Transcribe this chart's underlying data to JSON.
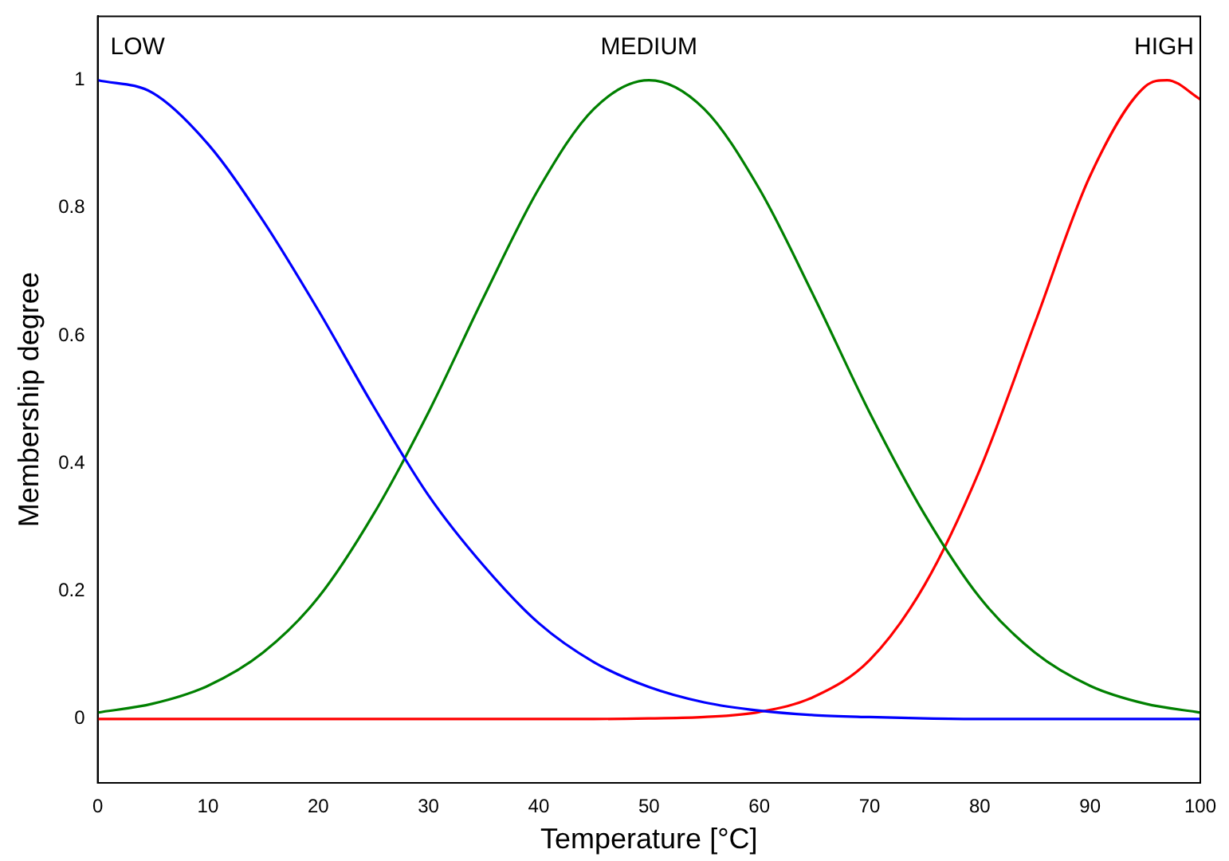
{
  "chart_data": {
    "type": "line",
    "xlabel": "Temperature [°C]",
    "ylabel": "Membership degree",
    "x": [
      0,
      5,
      10,
      15,
      20,
      25,
      30,
      35,
      40,
      45,
      50,
      55,
      60,
      65,
      70,
      75,
      80,
      85,
      90,
      95,
      100
    ],
    "xlim": [
      0,
      100
    ],
    "xticks": [
      0,
      10,
      20,
      30,
      40,
      50,
      60,
      70,
      80,
      90,
      100
    ],
    "ylim": [
      -0.1,
      1.1
    ],
    "yticks": [
      0,
      0.2,
      0.4,
      0.6,
      0.8,
      1
    ],
    "grid": false,
    "legend": false,
    "marker": "none",
    "line_style": "solid",
    "series": [
      {
        "name": "LOW",
        "color": "#0000ff",
        "values": [
          1.0,
          0.98,
          0.9,
          0.78,
          0.64,
          0.49,
          0.35,
          0.24,
          0.15,
          0.089,
          0.05,
          0.026,
          0.013,
          0.006,
          0.003,
          0.001,
          0,
          0,
          0,
          0,
          0
        ]
      },
      {
        "name": "MEDIUM",
        "color": "#008000",
        "values": [
          0.01,
          0.024,
          0.052,
          0.104,
          0.19,
          0.32,
          0.48,
          0.66,
          0.83,
          0.955,
          1.0,
          0.955,
          0.83,
          0.66,
          0.48,
          0.32,
          0.19,
          0.104,
          0.052,
          0.024,
          0.01
        ]
      },
      {
        "name": "HIGH",
        "color": "#ff0000",
        "x": [
          0,
          5,
          10,
          15,
          20,
          25,
          30,
          35,
          40,
          45,
          50,
          55,
          60,
          65,
          70,
          75,
          80,
          85,
          90,
          95,
          97,
          100
        ],
        "values": [
          0,
          0,
          0,
          0,
          0,
          0,
          0,
          0,
          0,
          0,
          0.001,
          0.003,
          0.011,
          0.035,
          0.092,
          0.21,
          0.39,
          0.62,
          0.85,
          0.99,
          1.0,
          0.97
        ]
      }
    ]
  }
}
